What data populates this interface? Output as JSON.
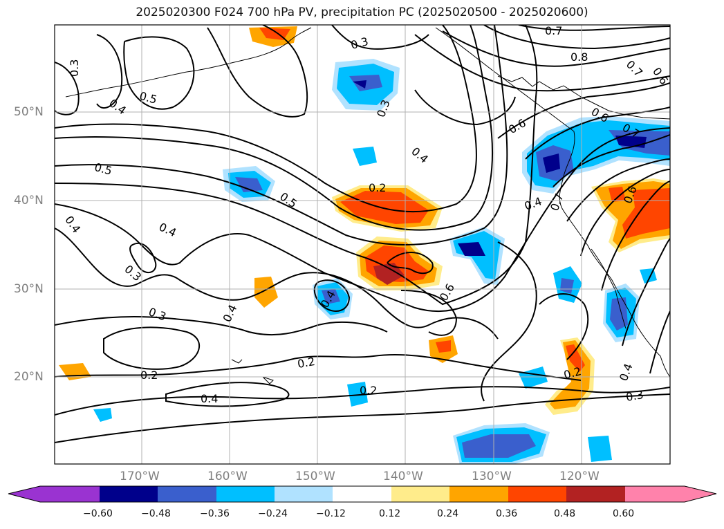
{
  "title": "2025020300 F024 700 hPa PV, precipitation PC (2025020500 - 2025020600)",
  "lat_labels": [
    "50°N",
    "40°N",
    "30°N",
    "20°N"
  ],
  "lon_labels": [
    "170°W",
    "160°W",
    "150°W",
    "140°W",
    "130°W",
    "120°W"
  ],
  "contour_labels": [
    "0.3",
    "0.4",
    "0.5",
    "0.4",
    "0.5",
    "0.4",
    "0.4",
    "0.3",
    "0.3",
    "0.4",
    "0.2",
    "0.4",
    "0.2",
    "0.2",
    "0.3",
    "0.5",
    "0.2",
    "0.6",
    "0.4",
    "0.3",
    "0.4",
    "0.7",
    "0.8",
    "0.7",
    "0.6",
    "0.6",
    "0.7",
    "0.7",
    "0.6",
    "0.6",
    "0.2",
    "0.4",
    "0.3"
  ],
  "colorbar": {
    "ticks": [
      "−0.60",
      "−0.48",
      "−0.36",
      "−0.24",
      "−0.12",
      "0.12",
      "0.24",
      "0.36",
      "0.48",
      "0.60"
    ],
    "colors": [
      "#9a33d1",
      "#00008b",
      "#3a5fcd",
      "#00bfff",
      "#b0e2ff",
      "#ffffff",
      "#ffec8b",
      "#ffa500",
      "#ff4500",
      "#b22222",
      "#ff82ab"
    ]
  }
}
